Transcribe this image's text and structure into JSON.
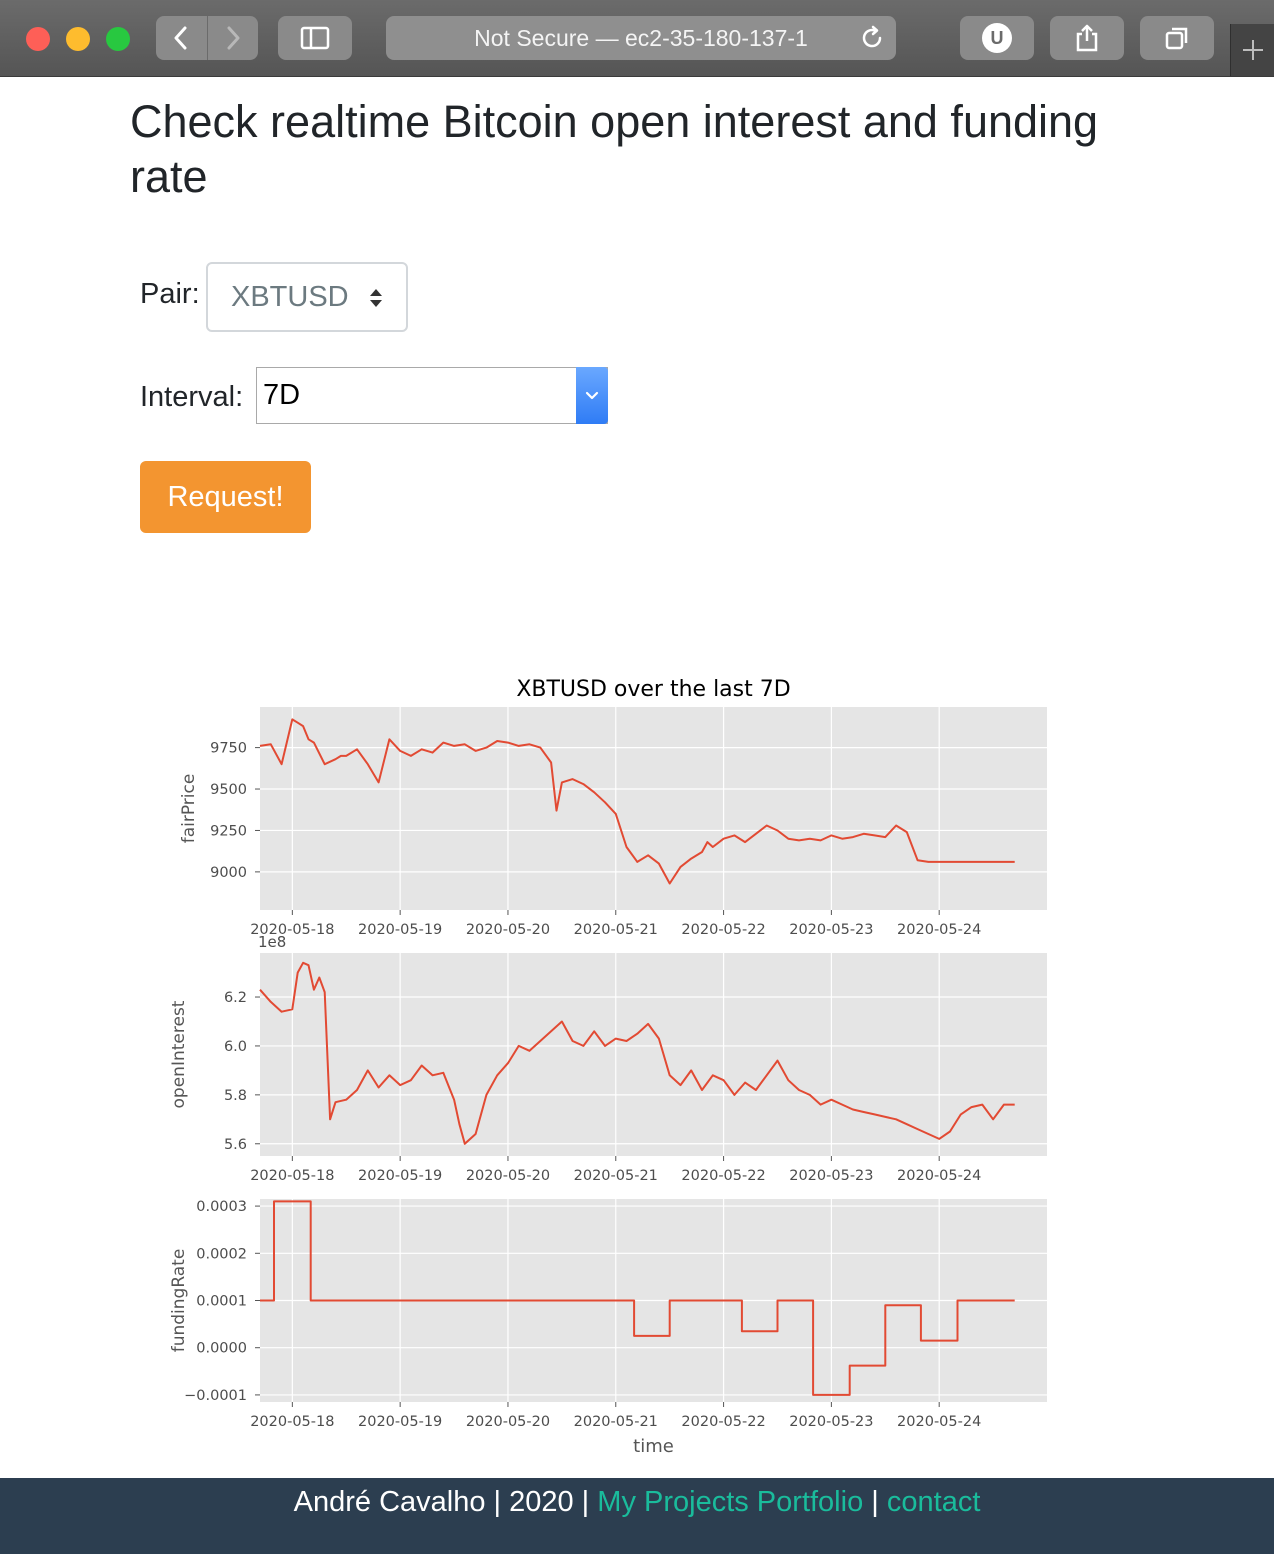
{
  "browser": {
    "address": "Not Secure — ec2-35-180-137-1",
    "extension_label": "U"
  },
  "page": {
    "title": "Check realtime Bitcoin open interest and funding rate"
  },
  "form": {
    "pair_label": "Pair:",
    "pair_value": "XBTUSD",
    "interval_label": "Interval:",
    "interval_value": "7D",
    "request_label": "Request!"
  },
  "footer": {
    "author": "André Cavalho | 2020 |",
    "portfolio_link": "My Projects Portfolio",
    "separator": "|",
    "contact_link": "contact"
  },
  "colors": {
    "accent": "#f39530",
    "footer_bg": "#2c3e50",
    "link": "#1abc9c",
    "line": "#e24a33",
    "plot_bg": "#e5e5e5"
  },
  "chart_data": {
    "type": "line",
    "title": "XBTUSD over the last 7D",
    "xlabel": "time",
    "x_ticks": [
      "2020-05-18",
      "2020-05-19",
      "2020-05-20",
      "2020-05-21",
      "2020-05-22",
      "2020-05-23",
      "2020-05-24"
    ],
    "x_range": [
      -0.3,
      7.0
    ],
    "panels": [
      {
        "name": "fairPrice",
        "ylabel": "fairPrice",
        "ylim": [
          8770,
          9995
        ],
        "yticks": [
          9000,
          9250,
          9500,
          9750
        ],
        "ytick_labels": [
          "9000",
          "9250",
          "9500",
          "9750"
        ],
        "offset_label": "",
        "x": [
          -0.3,
          -0.2,
          -0.1,
          0.0,
          0.05,
          0.1,
          0.15,
          0.2,
          0.3,
          0.4,
          0.45,
          0.5,
          0.6,
          0.7,
          0.8,
          0.9,
          1.0,
          1.1,
          1.2,
          1.3,
          1.4,
          1.5,
          1.6,
          1.7,
          1.8,
          1.9,
          2.0,
          2.1,
          2.2,
          2.3,
          2.4,
          2.45,
          2.5,
          2.6,
          2.7,
          2.8,
          2.9,
          3.0,
          3.1,
          3.2,
          3.3,
          3.4,
          3.5,
          3.6,
          3.7,
          3.8,
          3.85,
          3.9,
          4.0,
          4.1,
          4.2,
          4.3,
          4.4,
          4.5,
          4.6,
          4.7,
          4.8,
          4.9,
          5.0,
          5.1,
          5.2,
          5.3,
          5.4,
          5.5,
          5.6,
          5.7,
          5.8,
          5.9,
          6.0,
          6.1,
          6.2,
          6.3,
          6.4,
          6.5,
          6.6,
          6.65,
          6.7
        ],
        "values": [
          9760,
          9770,
          9650,
          9920,
          9900,
          9880,
          9800,
          9780,
          9650,
          9680,
          9700,
          9700,
          9740,
          9650,
          9540,
          9800,
          9730,
          9700,
          9740,
          9720,
          9780,
          9760,
          9770,
          9730,
          9750,
          9790,
          9780,
          9760,
          9770,
          9750,
          9660,
          9370,
          9540,
          9560,
          9530,
          9480,
          9420,
          9350,
          9150,
          9060,
          9100,
          9050,
          8930,
          9030,
          9080,
          9120,
          9180,
          9150,
          9200,
          9220,
          9180,
          9230,
          9280,
          9250,
          9200,
          9190,
          9200,
          9190,
          9220,
          9200,
          9210,
          9230,
          9220,
          9210,
          9280,
          9240,
          9070,
          9060,
          9060,
          9060,
          9060,
          9060,
          9060,
          9060,
          9060,
          9060,
          9060
        ]
      },
      {
        "name": "openInterest",
        "ylabel": "openInterest",
        "ylim": [
          5.55,
          6.38
        ],
        "yticks": [
          5.6,
          5.8,
          6.0,
          6.2
        ],
        "ytick_labels": [
          "5.6",
          "5.8",
          "6.0",
          "6.2"
        ],
        "offset_label": "1e8",
        "x": [
          -0.3,
          -0.2,
          -0.1,
          0.0,
          0.05,
          0.1,
          0.15,
          0.2,
          0.25,
          0.3,
          0.35,
          0.4,
          0.5,
          0.6,
          0.7,
          0.8,
          0.9,
          1.0,
          1.1,
          1.2,
          1.3,
          1.4,
          1.5,
          1.55,
          1.6,
          1.7,
          1.8,
          1.9,
          2.0,
          2.1,
          2.2,
          2.3,
          2.4,
          2.5,
          2.6,
          2.7,
          2.8,
          2.9,
          3.0,
          3.1,
          3.2,
          3.3,
          3.4,
          3.5,
          3.6,
          3.7,
          3.8,
          3.9,
          4.0,
          4.1,
          4.2,
          4.3,
          4.4,
          4.5,
          4.6,
          4.7,
          4.8,
          4.9,
          5.0,
          5.1,
          5.2,
          5.3,
          5.4,
          5.5,
          5.6,
          5.7,
          5.8,
          5.9,
          6.0,
          6.1,
          6.2,
          6.3,
          6.4,
          6.5,
          6.6,
          6.65,
          6.7
        ],
        "values": [
          6.23,
          6.18,
          6.14,
          6.15,
          6.3,
          6.34,
          6.33,
          6.23,
          6.28,
          6.22,
          5.7,
          5.77,
          5.78,
          5.82,
          5.9,
          5.83,
          5.88,
          5.84,
          5.86,
          5.92,
          5.88,
          5.89,
          5.78,
          5.68,
          5.6,
          5.64,
          5.8,
          5.88,
          5.93,
          6.0,
          5.98,
          6.02,
          6.06,
          6.1,
          6.02,
          6.0,
          6.06,
          6.0,
          6.03,
          6.02,
          6.05,
          6.09,
          6.03,
          5.88,
          5.84,
          5.9,
          5.82,
          5.88,
          5.86,
          5.8,
          5.85,
          5.82,
          5.88,
          5.94,
          5.86,
          5.82,
          5.8,
          5.76,
          5.78,
          5.76,
          5.74,
          5.73,
          5.72,
          5.71,
          5.7,
          5.68,
          5.66,
          5.64,
          5.62,
          5.65,
          5.72,
          5.75,
          5.76,
          5.7,
          5.76,
          5.76,
          5.76
        ]
      },
      {
        "name": "fundingRate",
        "ylabel": "fundingRate",
        "ylim": [
          -0.000115,
          0.000315
        ],
        "yticks": [
          -0.0001,
          0.0,
          0.0001,
          0.0002,
          0.0003
        ],
        "ytick_labels": [
          "−0.0001",
          "0.0000",
          "0.0001",
          "0.0002",
          "0.0003"
        ],
        "offset_label": "",
        "step": true,
        "x": [
          -0.3,
          -0.17,
          0.17,
          0.5,
          0.83,
          1.17,
          1.5,
          1.83,
          2.17,
          2.5,
          2.83,
          3.17,
          3.5,
          3.83,
          4.17,
          4.5,
          4.83,
          5.17,
          5.5,
          5.83,
          6.17,
          6.5,
          6.7
        ],
        "values": [
          0.0001,
          0.00031,
          0.0001,
          0.0001,
          0.0001,
          0.0001,
          0.0001,
          0.0001,
          0.0001,
          0.0001,
          0.0001,
          2.5e-05,
          0.0001,
          0.0001,
          3.5e-05,
          0.0001,
          -0.0001,
          -3.8e-05,
          9e-05,
          1.5e-05,
          0.0001,
          0.0001,
          0.0001
        ]
      }
    ]
  }
}
